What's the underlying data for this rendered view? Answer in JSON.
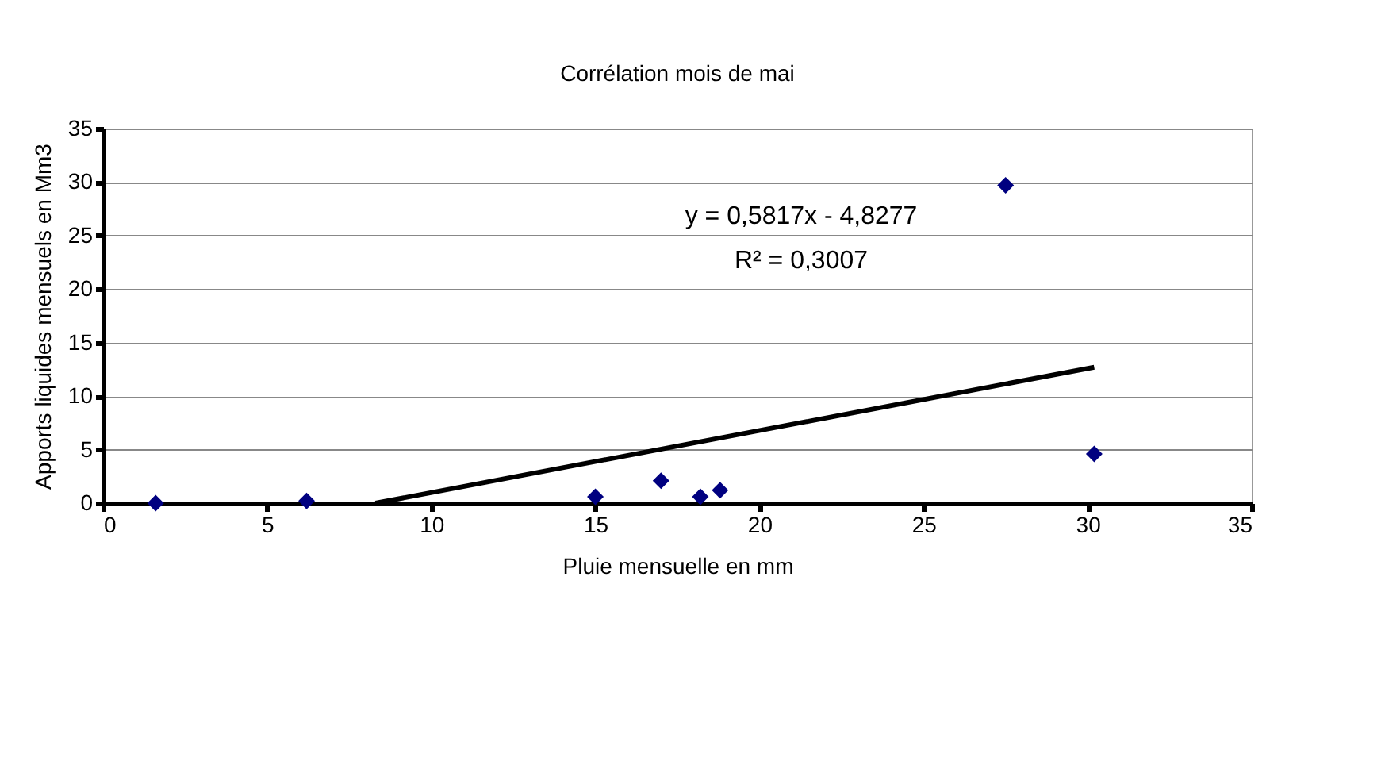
{
  "chart_data": {
    "type": "scatter",
    "title": "Corrélation mois de mai",
    "xlabel": "Pluie mensuelle en mm",
    "ylabel": "Apports liquides mensuels en Mm3",
    "x": [
      1.6,
      6.2,
      15,
      17,
      18.2,
      18.8,
      27.5,
      30.2
    ],
    "series": [
      {
        "color": "#000080",
        "values": [
          0,
          0.2,
          0.6,
          2.1,
          0.6,
          1.2,
          29.7,
          4.6
        ],
        "marker": "diamond"
      },
      {
        "type": "line",
        "color": "#000000",
        "x": [
          8.3,
          30.2
        ],
        "values": [
          0,
          12.7
        ],
        "marker": "none",
        "line_style": "solid"
      }
    ],
    "annotations": [
      "y = 0,5817x - 4,8277",
      "R² = 0,3007"
    ],
    "xlim": [
      0,
      35
    ],
    "xticks": [
      0,
      5,
      10,
      15,
      20,
      25,
      30,
      35
    ],
    "ylim": [
      0,
      35
    ],
    "yticks": [
      0,
      5,
      10,
      15,
      20,
      25,
      30,
      35
    ],
    "grid": "y",
    "legend": false
  }
}
